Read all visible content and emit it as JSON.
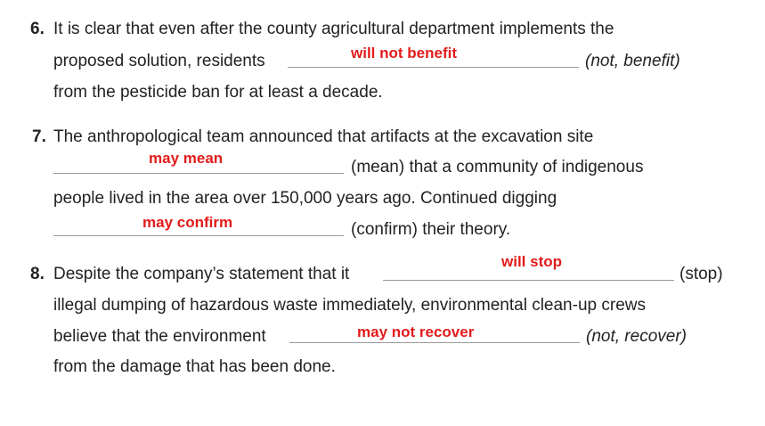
{
  "items": [
    {
      "number": "6.",
      "line1": "It is clear that even after the county agricultural department implements the",
      "line2_pre": "proposed solution, residents",
      "answer": "will not benefit",
      "hint": "(not, benefit)",
      "line3": "from the pesticide ban for at least a decade."
    },
    {
      "number": "7.",
      "line1": "The anthropological team announced that artifacts at the excavation site",
      "answer1": "may mean",
      "hint1": "(mean) that a community of indigenous",
      "line3": "people lived in the area over 150,000 years ago. Continued digging",
      "answer2": "may confirm",
      "hint2": "(confirm) their theory."
    },
    {
      "number": "8.",
      "line1_pre": "Despite the company’s statement that it",
      "answer1": "will stop",
      "hint1": "(stop)",
      "line2": "illegal dumping of hazardous waste immediately, environmental clean-up crews",
      "line3_pre": "believe that the environment",
      "answer2": "may not recover",
      "hint2": "(not, recover)",
      "line4": "from the damage that has been done."
    }
  ]
}
